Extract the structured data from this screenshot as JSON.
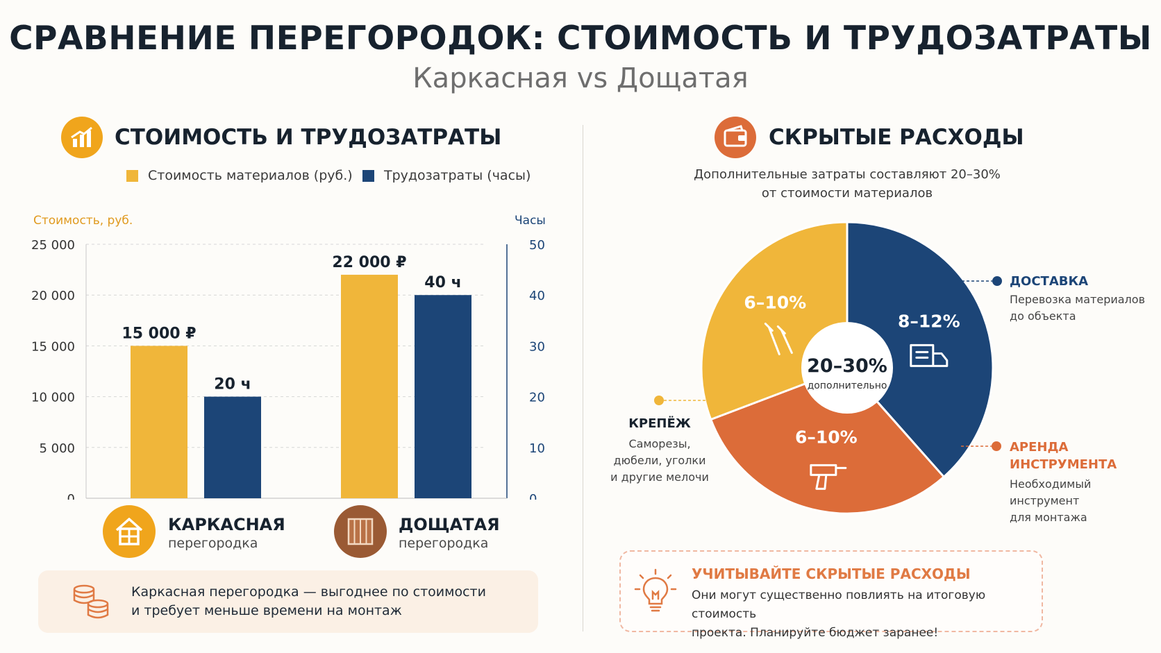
{
  "title": "СРАВНЕНИЕ ПЕРЕГОРОДОК: СТОИМОСТЬ И ТРУДОЗАТРАТЫ",
  "subtitle": "Каркасная vs Дощатая",
  "colors": {
    "gold": "#f0b63a",
    "navy": "#1c4577",
    "orange": "#dc6c39",
    "axis_gold": "#e09a1f",
    "axis_navy": "#1c4577"
  },
  "left": {
    "section_title": "СТОИМОСТЬ И ТРУДОЗАТРАТЫ",
    "section_icon": "bar-chart-icon",
    "legend": [
      {
        "label": "Стоимость материалов (руб.)",
        "color": "#f0b63a"
      },
      {
        "label": "Трудозатраты (часы)",
        "color": "#1c4577"
      }
    ],
    "categories": [
      {
        "name": "КАРКАСНАЯ",
        "sub": "перегородка",
        "icon": "house-icon",
        "icon_color": "#f0a51c"
      },
      {
        "name": "ДОЩАТАЯ",
        "sub": "перегородка",
        "icon": "planks-icon",
        "icon_color": "#9a5a34"
      }
    ],
    "summary": {
      "icon": "coins-icon",
      "line1": "Каркасная перегородка — выгоднее по стоимости",
      "line2": "и требует меньше времени на монтаж"
    }
  },
  "chart_data": [
    {
      "type": "bar",
      "categories": [
        "Каркасная перегородка",
        "Дощатая перегородка"
      ],
      "series": [
        {
          "name": "Стоимость материалов (руб.)",
          "axis": "left",
          "values": [
            15000,
            22000
          ],
          "labels": [
            "15 000 ₽",
            "22 000 ₽"
          ],
          "color": "#f0b63a"
        },
        {
          "name": "Трудозатраты (часы)",
          "axis": "right",
          "values": [
            20,
            40
          ],
          "labels": [
            "20 ч",
            "40 ч"
          ],
          "color": "#1c4577"
        }
      ],
      "ylabel_left": "Стоимость, руб.",
      "ylabel_right": "Часы",
      "ylim_left": [
        0,
        25000
      ],
      "ylim_right": [
        0,
        50
      ],
      "yticks_left": [
        "25 000",
        "20 000",
        "15 000",
        "10 000",
        "5 000",
        "0"
      ],
      "yticks_right": [
        "50",
        "40",
        "30",
        "20",
        "10",
        "0"
      ],
      "grid": true
    },
    {
      "type": "pie",
      "title": "СКРЫТЫЕ РАСХОДЫ",
      "center_label": "20–30%",
      "center_sub": "дополнительно",
      "slices": [
        {
          "label": "ДОСТАВКА",
          "value": 10,
          "text": "8–12%",
          "color": "#1c4577",
          "icon": "truck-icon"
        },
        {
          "label": "АРЕНДА ИНСТРУМЕНТА",
          "value": 8,
          "text": "6–10%",
          "color": "#dc6c39",
          "icon": "drill-icon"
        },
        {
          "label": "КРЕПЁЖ",
          "value": 8,
          "text": "6–10%",
          "color": "#f0b63a",
          "icon": "screws-icon"
        }
      ]
    }
  ],
  "right": {
    "section_title": "СКРЫТЫЕ РАСХОДЫ",
    "section_icon": "wallet-icon",
    "note_line1": "Дополнительные затраты составляют 20–30%",
    "note_line2": "от стоимости материалов",
    "annotations": {
      "delivery": {
        "title": "ДОСТАВКА",
        "line1": "Перевозка материалов",
        "line2": "до объекта"
      },
      "tools": {
        "title1": "АРЕНДА",
        "title2": "ИНСТРУМЕНТА",
        "line1": "Необходимый инструмент",
        "line2": "для монтажа"
      },
      "fasteners": {
        "title": "КРЕПЁЖ",
        "line1": "Саморезы,",
        "line2": "дюбели, уголки",
        "line3": "и другие мелочи"
      }
    },
    "tip": {
      "icon": "lightbulb-icon",
      "title": "УЧИТЫВАЙТЕ СКРЫТЫЕ РАСХОДЫ",
      "line1": "Они могут существенно повлиять на итоговую стоимость",
      "line2": "проекта. Планируйте бюджет заранее!"
    }
  }
}
